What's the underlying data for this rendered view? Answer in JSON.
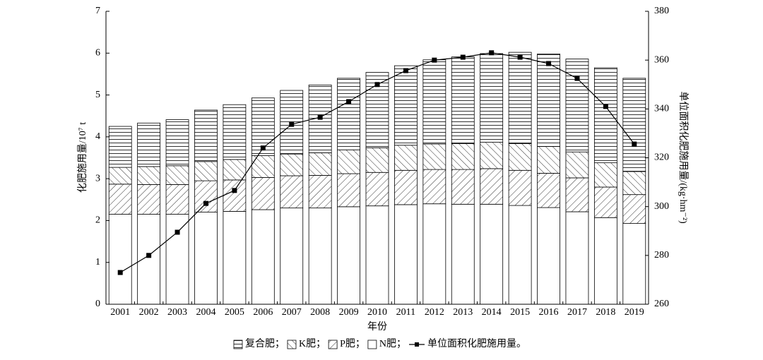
{
  "chart_data": {
    "type": "bar",
    "stacked": true,
    "x_label": "年份",
    "y_label": "化肥施用量/10⁷ t",
    "y2_label": "单位面积化肥施用量/(kg·hm⁻²)",
    "categories": [
      "2001",
      "2002",
      "2003",
      "2004",
      "2005",
      "2006",
      "2007",
      "2008",
      "2009",
      "2010",
      "2011",
      "2012",
      "2013",
      "2014",
      "2015",
      "2016",
      "2017",
      "2018",
      "2019"
    ],
    "series": [
      {
        "name": "N肥；",
        "color": "#000000",
        "pattern": "none",
        "values": [
          2.15,
          2.15,
          2.15,
          2.2,
          2.22,
          2.26,
          2.3,
          2.3,
          2.33,
          2.35,
          2.38,
          2.4,
          2.39,
          2.39,
          2.36,
          2.31,
          2.21,
          2.07,
          1.93
        ]
      },
      {
        "name": "P肥；",
        "color": "#000000",
        "pattern": "slash",
        "values": [
          0.72,
          0.71,
          0.71,
          0.75,
          0.75,
          0.77,
          0.77,
          0.78,
          0.79,
          0.8,
          0.82,
          0.82,
          0.83,
          0.85,
          0.84,
          0.82,
          0.81,
          0.73,
          0.69
        ]
      },
      {
        "name": "K肥；",
        "color": "#000000",
        "pattern": "backslash",
        "values": [
          0.4,
          0.43,
          0.45,
          0.46,
          0.49,
          0.52,
          0.52,
          0.54,
          0.57,
          0.59,
          0.6,
          0.61,
          0.62,
          0.63,
          0.64,
          0.64,
          0.62,
          0.58,
          0.55
        ]
      },
      {
        "name": "复合肥；",
        "color": "#000000",
        "pattern": "horizontal",
        "values": [
          0.98,
          1.04,
          1.1,
          1.23,
          1.31,
          1.38,
          1.52,
          1.62,
          1.71,
          1.8,
          1.9,
          2.01,
          2.07,
          2.12,
          2.18,
          2.21,
          2.22,
          2.27,
          2.23
        ]
      },
      {
        "name": "单位面积化肥施用量。",
        "color": "#000000",
        "type": "line",
        "axis": "y2",
        "values": [
          273,
          280,
          289.5,
          301.3,
          306.6,
          324,
          333.7,
          336.6,
          343,
          350,
          355.7,
          360,
          361.2,
          363,
          361.2,
          358.6,
          352.5,
          341,
          325.6
        ]
      }
    ],
    "legend_order": [
      3,
      2,
      1,
      0,
      4
    ],
    "ylim": [
      0,
      7
    ],
    "yticks": [
      0,
      1,
      2,
      3,
      4,
      5,
      6,
      7
    ],
    "y2lim": [
      260,
      380
    ],
    "y2ticks": [
      260,
      280,
      300,
      320,
      340,
      360,
      380
    ],
    "grid": false
  }
}
